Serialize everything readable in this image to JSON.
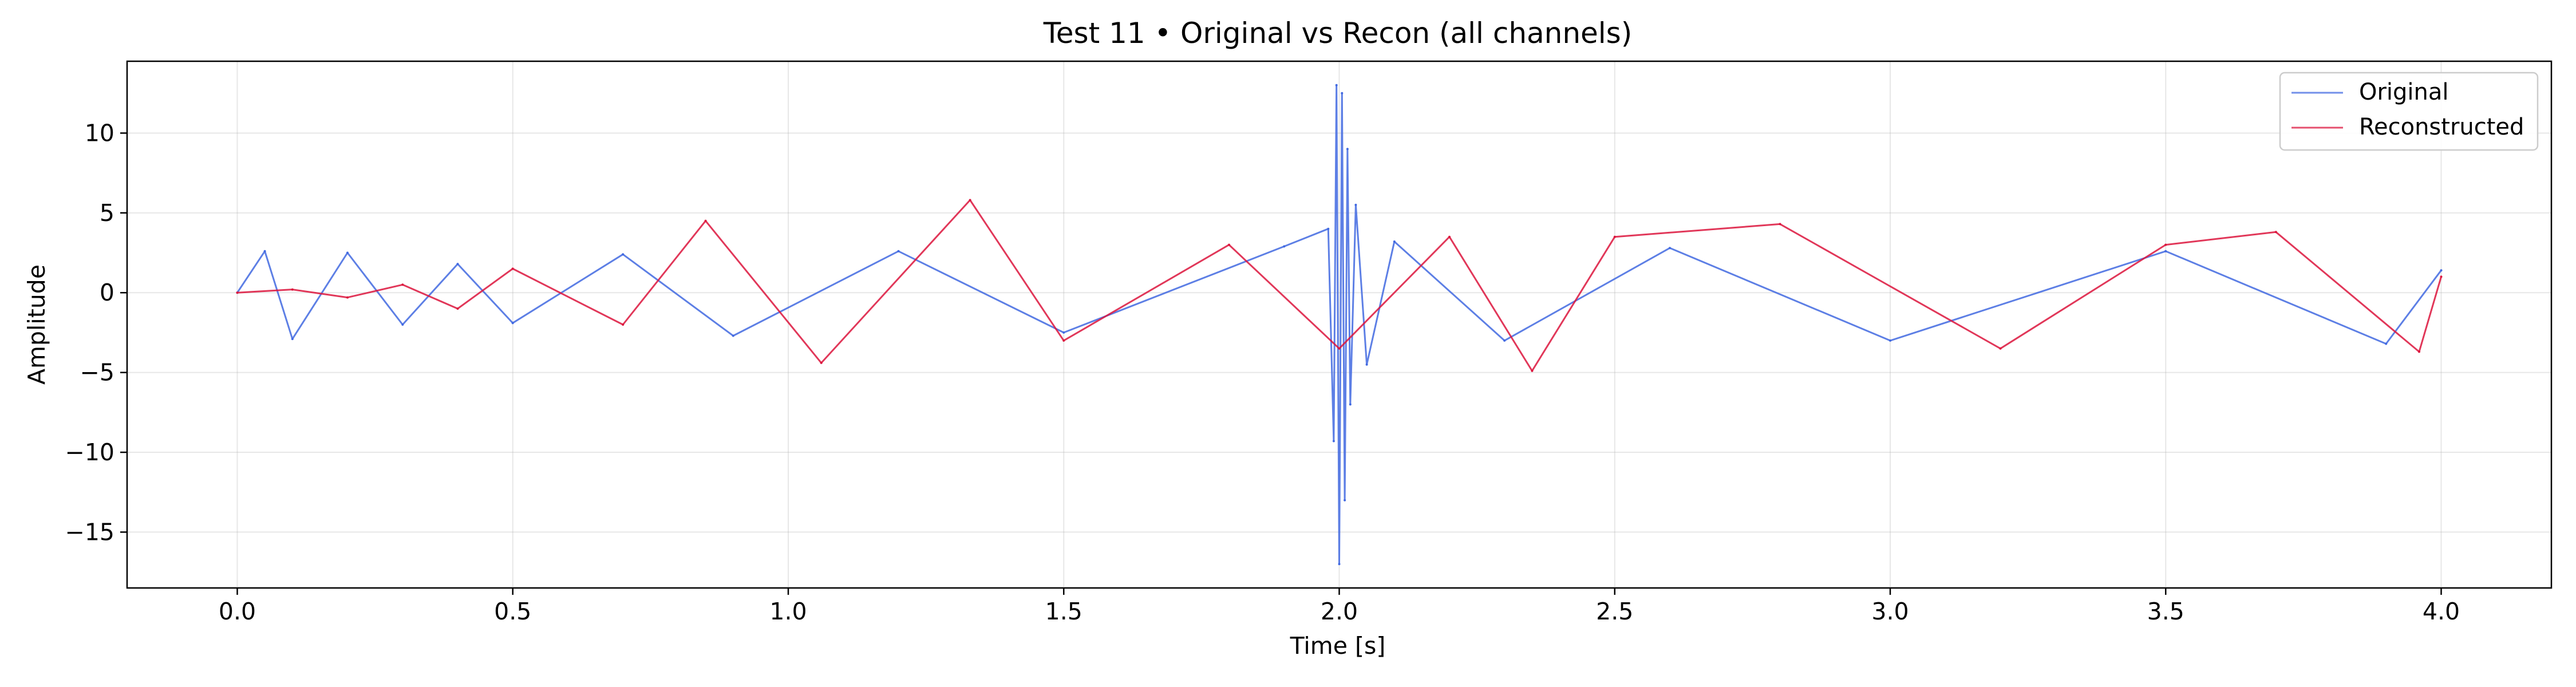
{
  "chart_data": {
    "type": "line",
    "title": "Test 11 • Original vs Recon (all channels)",
    "xlabel": "Time [s]",
    "ylabel": "Amplitude",
    "xlim": [
      -0.2,
      4.2
    ],
    "ylim": [
      -18.5,
      14.5
    ],
    "grid": true,
    "legend_position": "top-right",
    "x_ticks": [
      {
        "value": 0.0,
        "label": "0.0"
      },
      {
        "value": 0.5,
        "label": "0.5"
      },
      {
        "value": 1.0,
        "label": "1.0"
      },
      {
        "value": 1.5,
        "label": "1.5"
      },
      {
        "value": 2.0,
        "label": "2.0"
      },
      {
        "value": 2.5,
        "label": "2.5"
      },
      {
        "value": 3.0,
        "label": "3.0"
      },
      {
        "value": 3.5,
        "label": "3.5"
      },
      {
        "value": 4.0,
        "label": "4.0"
      }
    ],
    "y_ticks": [
      {
        "value": 10,
        "label": "10"
      },
      {
        "value": 5,
        "label": "5"
      },
      {
        "value": 0,
        "label": "0"
      },
      {
        "value": -5,
        "label": "−5"
      },
      {
        "value": -10,
        "label": "−10"
      },
      {
        "value": -15,
        "label": "−15"
      }
    ],
    "series": [
      {
        "name": "Original",
        "color": "#4169e1",
        "x": [
          0.0,
          0.05,
          0.1,
          0.2,
          0.3,
          0.4,
          0.5,
          0.7,
          0.9,
          1.2,
          1.5,
          1.9,
          1.98,
          1.99,
          1.995,
          2.0,
          2.005,
          2.01,
          2.015,
          2.02,
          2.03,
          2.05,
          2.1,
          2.3,
          2.6,
          3.0,
          3.5,
          3.9,
          4.0
        ],
        "values": [
          0.0,
          2.6,
          -2.9,
          2.5,
          -2.0,
          1.8,
          -1.9,
          2.4,
          -2.7,
          2.6,
          -2.5,
          2.9,
          4.0,
          -9.3,
          13.0,
          -17.0,
          12.5,
          -13.0,
          9.0,
          -7.0,
          5.5,
          -4.5,
          3.2,
          -3.0,
          2.8,
          -3.0,
          2.6,
          -3.2,
          1.4
        ]
      },
      {
        "name": "Reconstructed",
        "color": "#dc143c",
        "x": [
          0.0,
          0.1,
          0.2,
          0.3,
          0.4,
          0.5,
          0.7,
          0.85,
          1.06,
          1.33,
          1.5,
          1.8,
          2.0,
          2.2,
          2.35,
          2.5,
          2.8,
          3.2,
          3.5,
          3.7,
          3.96,
          4.0
        ],
        "values": [
          0.0,
          0.2,
          -0.3,
          0.5,
          -1.0,
          1.5,
          -2.0,
          4.5,
          -4.4,
          5.8,
          -3.0,
          3.0,
          -3.5,
          3.5,
          -4.9,
          3.5,
          4.3,
          -3.5,
          3.0,
          3.8,
          -3.7,
          1.0
        ]
      }
    ]
  }
}
